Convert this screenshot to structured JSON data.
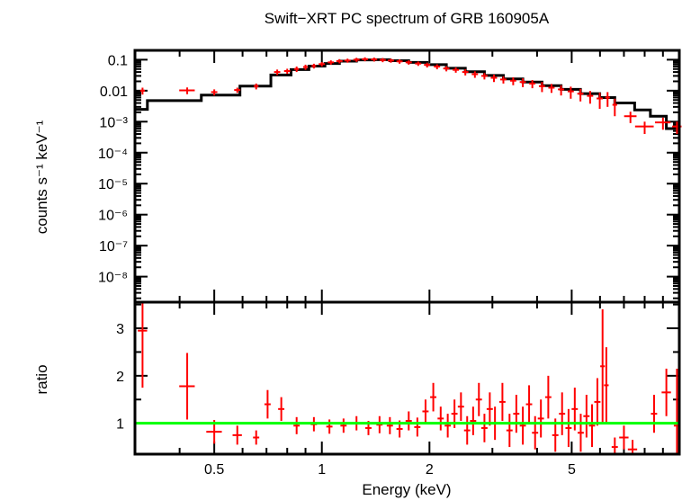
{
  "chart_data": {
    "type": "scatter",
    "title": "Swift−XRT PC spectrum of GRB 160905A",
    "xlabel": "Energy (keV)",
    "x_scale": "log",
    "xlim": [
      0.3,
      10.0
    ],
    "x_ticks": [
      {
        "value": 0.5,
        "label": "0.5"
      },
      {
        "value": 1,
        "label": "1"
      },
      {
        "value": 2,
        "label": "2"
      },
      {
        "value": 5,
        "label": "5"
      }
    ],
    "top_panel": {
      "ylabel": "counts s⁻¹ keV⁻¹",
      "y_scale": "log",
      "ylim": [
        1.5e-09,
        0.2
      ],
      "y_ticks": [
        {
          "value": 0.1,
          "label": "0.1"
        },
        {
          "value": 0.01,
          "label": "0.01"
        },
        {
          "value": 0.001,
          "label": "10⁻³"
        },
        {
          "value": 0.0001,
          "label": "10⁻⁴"
        },
        {
          "value": 1e-05,
          "label": "10⁻⁵"
        },
        {
          "value": 1e-06,
          "label": "10⁻⁶"
        },
        {
          "value": 1e-07,
          "label": "10⁻⁷"
        },
        {
          "value": 1e-08,
          "label": "10⁻⁸"
        }
      ],
      "data_color": "#ff0000",
      "model_color": "#000000",
      "series": [
        {
          "name": "data",
          "points": [
            [
              0.315,
              0.01,
              0.015,
              0.0025
            ],
            [
              0.42,
              0.0102,
              0.05,
              0.0025
            ],
            [
              0.5,
              0.009,
              0.02,
              0.002
            ],
            [
              0.58,
              0.0105,
              0.02,
              0.002
            ],
            [
              0.655,
              0.014,
              0.015,
              0.003
            ],
            [
              0.75,
              0.04,
              0.02,
              0.008
            ],
            [
              0.8,
              0.043,
              0.02,
              0.008
            ],
            [
              0.85,
              0.05,
              0.015,
              0.01
            ],
            [
              0.9,
              0.058,
              0.015,
              0.011
            ],
            [
              0.95,
              0.063,
              0.015,
              0.011
            ],
            [
              1.0,
              0.072,
              0.02,
              0.012
            ],
            [
              1.06,
              0.082,
              0.02,
              0.013
            ],
            [
              1.12,
              0.09,
              0.02,
              0.014
            ],
            [
              1.18,
              0.094,
              0.02,
              0.014
            ],
            [
              1.25,
              0.1,
              0.02,
              0.015
            ],
            [
              1.32,
              0.104,
              0.02,
              0.015
            ],
            [
              1.4,
              0.102,
              0.02,
              0.015
            ],
            [
              1.48,
              0.098,
              0.02,
              0.015
            ],
            [
              1.56,
              0.094,
              0.02,
              0.014
            ],
            [
              1.65,
              0.088,
              0.02,
              0.014
            ],
            [
              1.75,
              0.082,
              0.02,
              0.013
            ],
            [
              1.86,
              0.075,
              0.02,
              0.012
            ],
            [
              1.97,
              0.068,
              0.02,
              0.012
            ],
            [
              2.1,
              0.06,
              0.02,
              0.011
            ],
            [
              2.23,
              0.052,
              0.02,
              0.01
            ],
            [
              2.37,
              0.047,
              0.02,
              0.009
            ],
            [
              2.52,
              0.04,
              0.02,
              0.009
            ],
            [
              2.68,
              0.034,
              0.02,
              0.008
            ],
            [
              2.85,
              0.03,
              0.02,
              0.007
            ],
            [
              3.03,
              0.026,
              0.02,
              0.007
            ],
            [
              3.22,
              0.023,
              0.02,
              0.006
            ],
            [
              3.43,
              0.021,
              0.02,
              0.006
            ],
            [
              3.65,
              0.019,
              0.02,
              0.006
            ],
            [
              3.88,
              0.017,
              0.02,
              0.005
            ],
            [
              4.13,
              0.014,
              0.02,
              0.005
            ],
            [
              4.39,
              0.0125,
              0.02,
              0.004
            ],
            [
              4.67,
              0.011,
              0.02,
              0.004
            ],
            [
              4.97,
              0.0095,
              0.02,
              0.004
            ],
            [
              5.29,
              0.008,
              0.02,
              0.0035
            ],
            [
              5.63,
              0.0068,
              0.02,
              0.003
            ],
            [
              5.99,
              0.0056,
              0.02,
              0.003
            ],
            [
              6.3,
              0.006,
              0.015,
              0.003
            ],
            [
              6.6,
              0.0035,
              0.015,
              0.002
            ],
            [
              7.3,
              0.0015,
              0.04,
              0.0006
            ],
            [
              8.0,
              0.0007,
              0.06,
              0.0003
            ],
            [
              9.0,
              0.00095,
              0.05,
              0.0004
            ],
            [
              9.85,
              0.0007,
              0.03,
              0.0003
            ]
          ]
        },
        {
          "name": "model",
          "steps": [
            [
              0.3,
              0.0025
            ],
            [
              0.325,
              0.0048
            ],
            [
              0.46,
              0.0072
            ],
            [
              0.59,
              0.014
            ],
            [
              0.72,
              0.032
            ],
            [
              0.82,
              0.048
            ],
            [
              0.92,
              0.062
            ],
            [
              1.02,
              0.075
            ],
            [
              1.12,
              0.09
            ],
            [
              1.25,
              0.098
            ],
            [
              1.4,
              0.1
            ],
            [
              1.55,
              0.093
            ],
            [
              1.75,
              0.082
            ],
            [
              1.97,
              0.069
            ],
            [
              2.23,
              0.053
            ],
            [
              2.52,
              0.041
            ],
            [
              2.85,
              0.031
            ],
            [
              3.22,
              0.024
            ],
            [
              3.65,
              0.019
            ],
            [
              4.13,
              0.0145
            ],
            [
              4.67,
              0.011
            ],
            [
              5.29,
              0.008
            ],
            [
              5.99,
              0.006
            ],
            [
              6.6,
              0.004
            ],
            [
              7.5,
              0.0024
            ],
            [
              8.3,
              0.0015
            ],
            [
              9.2,
              0.0006
            ],
            [
              10.0,
              0.0006
            ]
          ]
        }
      ]
    },
    "bottom_panel": {
      "ylabel": "ratio",
      "y_scale": "linear",
      "ylim": [
        0.35,
        3.55
      ],
      "y_ticks": [
        {
          "value": 1,
          "label": "1"
        },
        {
          "value": 2,
          "label": "2"
        },
        {
          "value": 3,
          "label": "3"
        }
      ],
      "reference_line": 1.0,
      "reference_color": "#00ff00",
      "series": [
        {
          "name": "ratio",
          "points": [
            [
              0.315,
              2.95,
              0.03,
              1.2
            ],
            [
              0.42,
              1.78,
              0.05,
              0.7
            ],
            [
              0.5,
              0.82,
              0.05,
              0.25
            ],
            [
              0.58,
              0.75,
              0.03,
              0.2
            ],
            [
              0.655,
              0.7,
              0.02,
              0.15
            ],
            [
              0.705,
              1.4,
              0.02,
              0.3
            ],
            [
              0.77,
              1.3,
              0.02,
              0.25
            ],
            [
              0.85,
              0.95,
              0.02,
              0.18
            ],
            [
              0.95,
              0.98,
              0.02,
              0.15
            ],
            [
              1.05,
              0.93,
              0.02,
              0.15
            ],
            [
              1.15,
              0.95,
              0.02,
              0.15
            ],
            [
              1.25,
              1.0,
              0.02,
              0.15
            ],
            [
              1.35,
              0.9,
              0.02,
              0.15
            ],
            [
              1.45,
              0.97,
              0.02,
              0.18
            ],
            [
              1.55,
              0.95,
              0.02,
              0.18
            ],
            [
              1.65,
              0.88,
              0.02,
              0.18
            ],
            [
              1.75,
              1.05,
              0.02,
              0.2
            ],
            [
              1.85,
              0.92,
              0.02,
              0.2
            ],
            [
              1.95,
              1.25,
              0.02,
              0.25
            ],
            [
              2.05,
              1.55,
              0.02,
              0.3
            ],
            [
              2.15,
              1.1,
              0.02,
              0.25
            ],
            [
              2.25,
              0.95,
              0.02,
              0.25
            ],
            [
              2.35,
              1.2,
              0.02,
              0.3
            ],
            [
              2.45,
              1.35,
              0.02,
              0.3
            ],
            [
              2.55,
              0.85,
              0.02,
              0.3
            ],
            [
              2.65,
              1.05,
              0.02,
              0.3
            ],
            [
              2.75,
              1.5,
              0.02,
              0.35
            ],
            [
              2.85,
              0.9,
              0.02,
              0.3
            ],
            [
              2.95,
              1.3,
              0.02,
              0.35
            ],
            [
              3.05,
              1.0,
              0.02,
              0.35
            ],
            [
              3.2,
              1.45,
              0.02,
              0.4
            ],
            [
              3.35,
              0.85,
              0.02,
              0.35
            ],
            [
              3.5,
              1.2,
              0.02,
              0.4
            ],
            [
              3.65,
              0.95,
              0.02,
              0.4
            ],
            [
              3.8,
              1.4,
              0.02,
              0.4
            ],
            [
              3.95,
              0.8,
              0.02,
              0.35
            ],
            [
              4.1,
              1.1,
              0.02,
              0.4
            ],
            [
              4.3,
              1.55,
              0.02,
              0.45
            ],
            [
              4.5,
              0.75,
              0.02,
              0.35
            ],
            [
              4.7,
              1.2,
              0.02,
              0.45
            ],
            [
              4.9,
              0.9,
              0.02,
              0.4
            ],
            [
              5.1,
              1.3,
              0.02,
              0.45
            ],
            [
              5.3,
              0.8,
              0.02,
              0.4
            ],
            [
              5.5,
              1.15,
              0.02,
              0.45
            ],
            [
              5.7,
              0.95,
              0.02,
              0.45
            ],
            [
              5.9,
              1.45,
              0.02,
              0.5
            ],
            [
              6.1,
              2.2,
              0.015,
              1.2
            ],
            [
              6.25,
              1.8,
              0.015,
              0.8
            ],
            [
              6.6,
              0.5,
              0.02,
              0.2
            ],
            [
              7.0,
              0.7,
              0.03,
              0.25
            ],
            [
              7.4,
              0.45,
              0.03,
              0.2
            ],
            [
              8.5,
              1.2,
              0.02,
              0.4
            ],
            [
              9.2,
              1.65,
              0.03,
              0.5
            ],
            [
              9.85,
              0.95,
              0.02,
              1.2
            ]
          ]
        }
      ]
    }
  }
}
